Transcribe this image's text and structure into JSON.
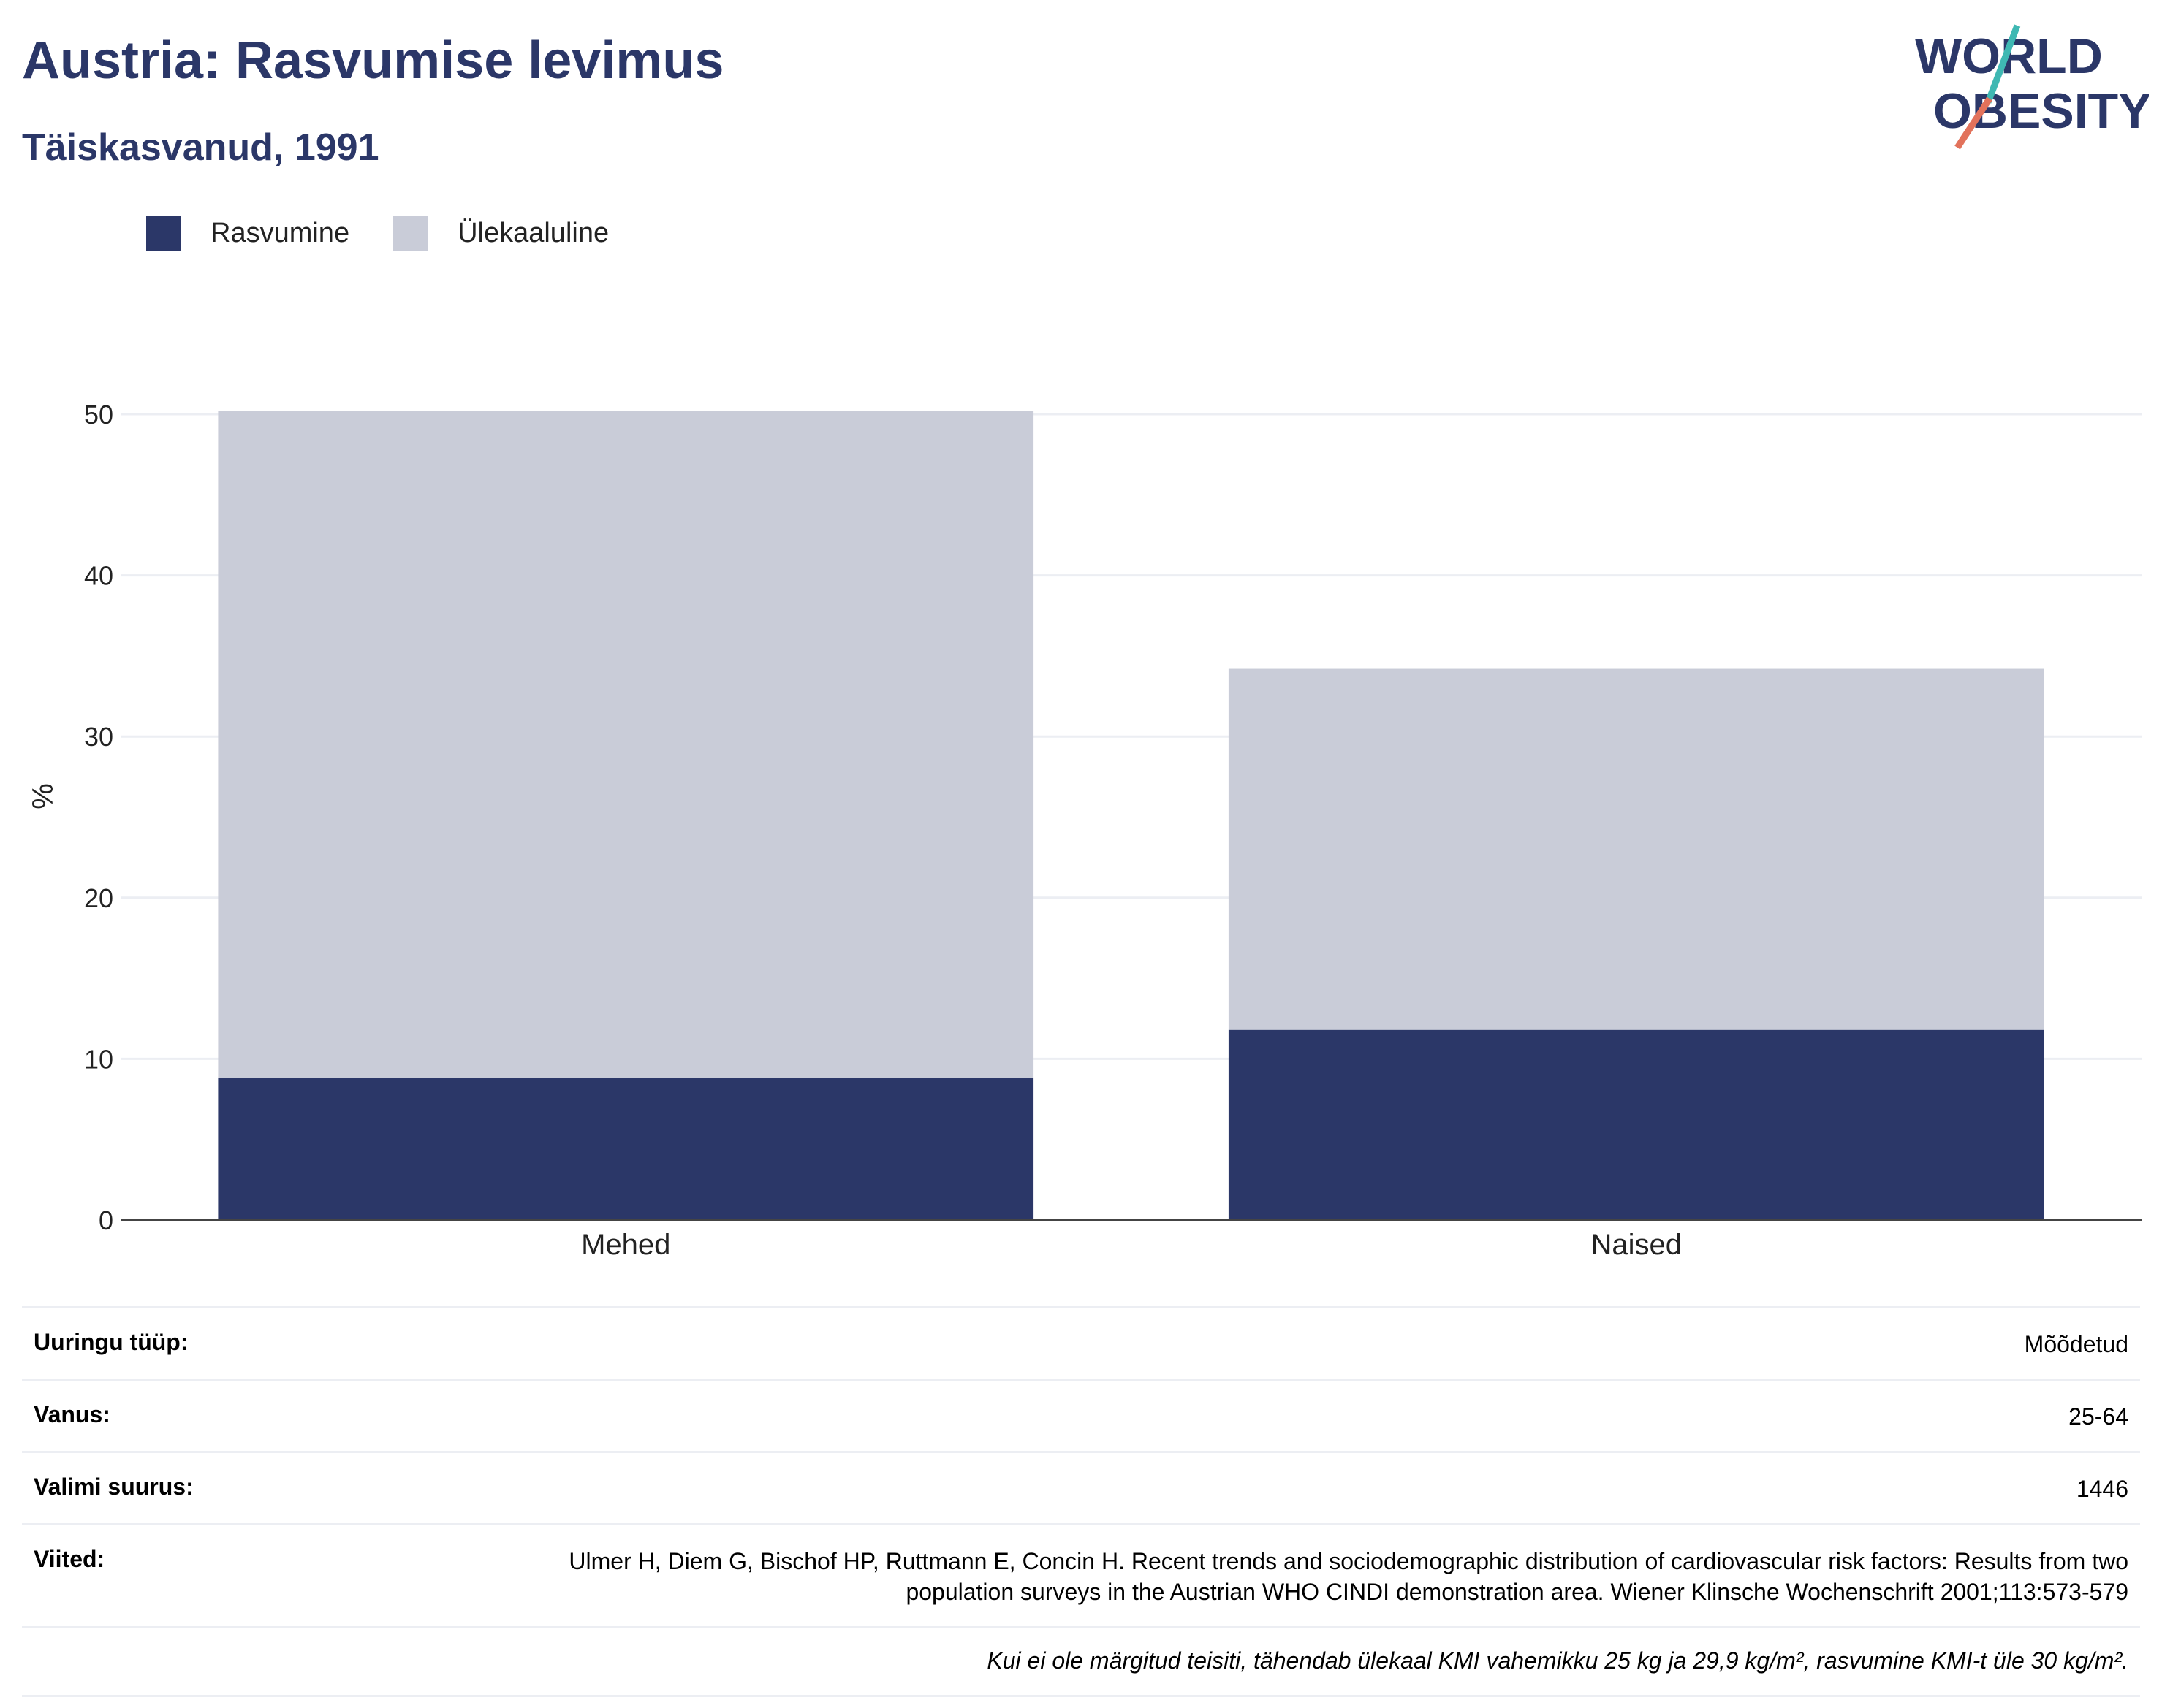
{
  "header": {
    "title": "Austria: Rasvumise levimus",
    "subtitle": "Täiskasvanud, 1991"
  },
  "logo": {
    "line1": "WORLD",
    "line2": "OBESITY",
    "colors": {
      "text": "#2b3768",
      "slash_top": "#3fb8b3",
      "slash_bottom": "#e2725b"
    }
  },
  "legend": [
    {
      "label": "Rasvumine",
      "color": "#2b3768"
    },
    {
      "label": "Ülekaaluline",
      "color": "#c9ccd8"
    }
  ],
  "chart_data": {
    "type": "bar",
    "stacked": true,
    "categories": [
      "Mehed",
      "Naised"
    ],
    "series": [
      {
        "name": "Rasvumine",
        "values": [
          8.8,
          11.8
        ],
        "color": "#2b3768"
      },
      {
        "name": "Ülekaaluline",
        "values": [
          41.4,
          22.4
        ],
        "color": "#c9ccd8"
      }
    ],
    "ylabel": "%",
    "ylim": [
      0,
      50
    ],
    "yticks": [
      "0",
      "10",
      "20",
      "30",
      "40",
      "50"
    ],
    "grid": true,
    "legend_position": "top-left"
  },
  "meta": {
    "rows": [
      {
        "label": "Uuringu tüüp:",
        "value": "Mõõdetud"
      },
      {
        "label": "Vanus:",
        "value": "25-64"
      },
      {
        "label": "Valimi suurus:",
        "value": "1446"
      },
      {
        "label": "Viited:",
        "value": "Ulmer H, Diem G, Bischof HP, Ruttmann E, Concin H. Recent trends and sociodemographic distribution of cardiovascular risk factors: Results from two population surveys in the Austrian WHO CINDI demonstration area. Wiener Klinsche Wochenschrift 2001;113:573-579"
      }
    ],
    "note": "Kui ei ole märgitud teisiti, tähendab ülekaal KMI vahemikku 25 kg ja 29,9 kg/m², rasvumine KMI-t üle 30 kg/m²."
  }
}
